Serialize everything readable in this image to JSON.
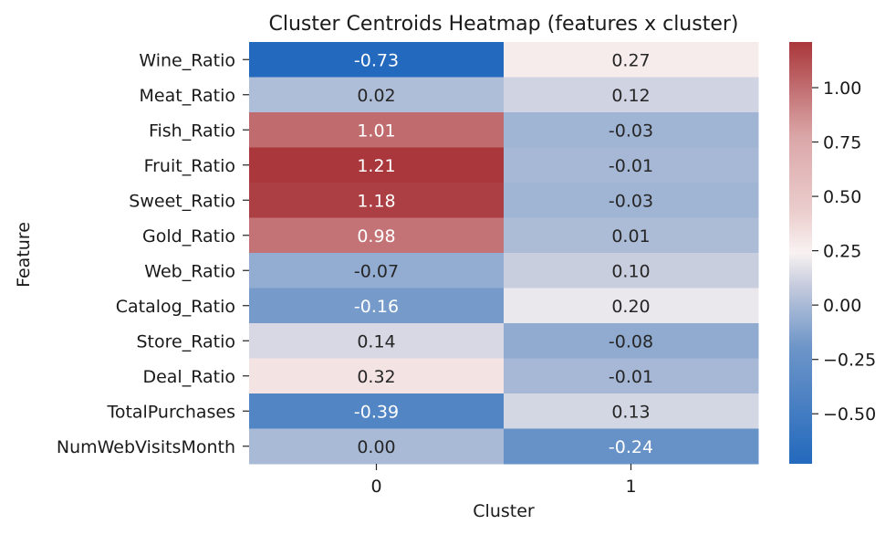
{
  "chart_data": {
    "type": "heatmap",
    "title": "Cluster Centroids Heatmap (features x cluster)",
    "xlabel": "Cluster",
    "ylabel": "Feature",
    "columns": [
      "0",
      "1"
    ],
    "rows": [
      "Wine_Ratio",
      "Meat_Ratio",
      "Fish_Ratio",
      "Fruit_Ratio",
      "Sweet_Ratio",
      "Gold_Ratio",
      "Web_Ratio",
      "Catalog_Ratio",
      "Store_Ratio",
      "Deal_Ratio",
      "TotalPurchases",
      "NumWebVisitsMonth"
    ],
    "values": [
      [
        -0.73,
        0.27
      ],
      [
        0.02,
        0.12
      ],
      [
        1.01,
        -0.03
      ],
      [
        1.21,
        -0.01
      ],
      [
        1.18,
        -0.03
      ],
      [
        0.98,
        0.01
      ],
      [
        -0.07,
        0.1
      ],
      [
        -0.16,
        0.2
      ],
      [
        0.14,
        -0.08
      ],
      [
        0.32,
        -0.01
      ],
      [
        -0.39,
        0.13
      ],
      [
        0.0,
        -0.24
      ]
    ],
    "labels": [
      [
        "-0.73",
        "0.27"
      ],
      [
        "0.02",
        "0.12"
      ],
      [
        "1.01",
        "-0.03"
      ],
      [
        "1.21",
        "-0.01"
      ],
      [
        "1.18",
        "-0.03"
      ],
      [
        "0.98",
        "0.01"
      ],
      [
        "-0.07",
        "0.10"
      ],
      [
        "-0.16",
        "0.20"
      ],
      [
        "0.14",
        "-0.08"
      ],
      [
        "0.32",
        "-0.01"
      ],
      [
        "-0.39",
        "0.13"
      ],
      [
        "0.00",
        "-0.24"
      ]
    ],
    "colorbar": {
      "range": [
        -0.73,
        1.21
      ],
      "colormap": "vlag",
      "center": 0.24,
      "ticks": [
        -0.5,
        -0.25,
        0.0,
        0.25,
        0.5,
        0.75,
        1.0
      ],
      "tick_labels": [
        "−0.50",
        "−0.25",
        "0.00",
        "0.25",
        "0.50",
        "0.75",
        "1.00"
      ]
    },
    "colors": {
      "low": "#2369bd",
      "mid": "#f9f2f2",
      "high": "#a9373b"
    },
    "grid": false,
    "legend": "colorbar-right"
  }
}
